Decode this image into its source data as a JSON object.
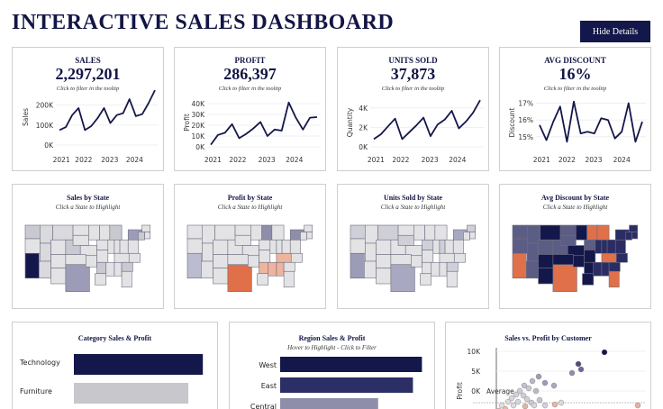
{
  "title": "INTERACTIVE SALES DASHBOARD",
  "hide_details_label": "Hide Details",
  "colors": {
    "navy": "#14174a",
    "lavender": "#8e8eaa",
    "gray": "#c7c7cc",
    "orange": "#e0704a"
  },
  "kpis": [
    {
      "label": "SALES",
      "value": "2,297,201",
      "sub": "Click to filter in the tooltip",
      "ylabel": "Sales",
      "yticks": [
        "200K",
        "100K",
        "0K"
      ],
      "xticks": [
        "2021",
        "2022",
        "2023",
        "2024"
      ]
    },
    {
      "label": "PROFIT",
      "value": "286,397",
      "sub": "Click to filter in the tooltip",
      "ylabel": "Profit",
      "yticks": [
        "40K",
        "30K",
        "20K",
        "10K",
        "0K"
      ],
      "xticks": [
        "2021",
        "2022",
        "2023",
        "2024"
      ]
    },
    {
      "label": "UNITS SOLD",
      "value": "37,873",
      "sub": "Click to filter in the tooltip",
      "ylabel": "Quantity",
      "yticks": [
        "4K",
        "2K",
        "0K"
      ],
      "xticks": [
        "2021",
        "2022",
        "2023",
        "2024"
      ]
    },
    {
      "label": "AVG DISCOUNT",
      "value": "16%",
      "sub": "Click to filter in the tooltip",
      "ylabel": "Discount",
      "yticks": [
        "17%",
        "16%",
        "15%"
      ],
      "xticks": [
        "2021",
        "2022",
        "2023",
        "2024"
      ]
    }
  ],
  "maps": [
    {
      "title": "Sales by State",
      "sub": "Click a State to Highlight"
    },
    {
      "title": "Profit by State",
      "sub": "Click a State to Highlight"
    },
    {
      "title": "Units Sold by State",
      "sub": "Click a State to Highlight"
    },
    {
      "title": "Avg Discount by State",
      "sub": "Click a State to Highlight"
    }
  ],
  "category": {
    "title": "Category Sales & Profit",
    "bars": [
      {
        "label": "Technology"
      },
      {
        "label": "Furniture"
      }
    ]
  },
  "region": {
    "title": "Region Sales & Profit",
    "sub": "Hover to Highlight  -  Click to Filter",
    "bars": [
      {
        "label": "West"
      },
      {
        "label": "East"
      },
      {
        "label": "Central"
      }
    ]
  },
  "scatter": {
    "title": "Sales vs. Profit by Customer",
    "ylabel": "Profit",
    "yticks": [
      "10K",
      "5K",
      "0K"
    ],
    "avg_label": "Average"
  },
  "chart_data": [
    {
      "type": "line",
      "title": "SALES",
      "ylabel": "Sales",
      "ylim": [
        0,
        280000
      ],
      "x": [
        "2021-Q1",
        "2021-Q2",
        "2021-Q3",
        "2021-Q4",
        "2022-Q1",
        "2022-Q2",
        "2022-Q3",
        "2022-Q4",
        "2023-Q1",
        "2023-Q2",
        "2023-Q3",
        "2023-Q4",
        "2024-Q1",
        "2024-Q2",
        "2024-Q3",
        "2024-Q4"
      ],
      "values": [
        75000,
        90000,
        150000,
        185000,
        75000,
        95000,
        135000,
        185000,
        110000,
        150000,
        160000,
        230000,
        145000,
        155000,
        210000,
        275000
      ]
    },
    {
      "type": "line",
      "title": "PROFIT",
      "ylabel": "Profit",
      "ylim": [
        0,
        45000
      ],
      "x": [
        "2021-Q1",
        "2021-Q2",
        "2021-Q3",
        "2021-Q4",
        "2022-Q1",
        "2022-Q2",
        "2022-Q3",
        "2022-Q4",
        "2023-Q1",
        "2023-Q2",
        "2023-Q3",
        "2023-Q4",
        "2024-Q1",
        "2024-Q2",
        "2024-Q3",
        "2024-Q4"
      ],
      "values": [
        2000,
        11000,
        13000,
        21000,
        8000,
        12000,
        17000,
        23000,
        10000,
        16000,
        15000,
        41000,
        27000,
        16000,
        27000,
        27500
      ]
    },
    {
      "type": "line",
      "title": "UNITS SOLD",
      "ylabel": "Quantity",
      "ylim": [
        0,
        5000
      ],
      "x": [
        "2021-Q1",
        "2021-Q2",
        "2021-Q3",
        "2021-Q4",
        "2022-Q1",
        "2022-Q2",
        "2022-Q3",
        "2022-Q4",
        "2023-Q1",
        "2023-Q2",
        "2023-Q3",
        "2023-Q4",
        "2024-Q1",
        "2024-Q2",
        "2024-Q3",
        "2024-Q4"
      ],
      "values": [
        800,
        1300,
        2100,
        2900,
        800,
        1500,
        2200,
        3000,
        1100,
        2300,
        2800,
        3700,
        1900,
        2600,
        3500,
        4800
      ]
    },
    {
      "type": "line",
      "title": "AVG DISCOUNT",
      "ylabel": "Discount",
      "ylim": [
        14.4,
        17.3
      ],
      "x": [
        "2021-Q1",
        "2021-Q2",
        "2021-Q3",
        "2021-Q4",
        "2022-Q1",
        "2022-Q2",
        "2022-Q3",
        "2022-Q4",
        "2023-Q1",
        "2023-Q2",
        "2023-Q3",
        "2023-Q4",
        "2024-Q1",
        "2024-Q2",
        "2024-Q3",
        "2024-Q4"
      ],
      "values": [
        15.7,
        14.8,
        15.9,
        16.8,
        14.7,
        17.1,
        15.2,
        15.3,
        15.2,
        16.1,
        16.0,
        14.9,
        15.3,
        17.0,
        14.7,
        15.9
      ]
    },
    {
      "type": "bar",
      "title": "Category Sales & Profit",
      "categories": [
        "Technology",
        "Furniture"
      ],
      "values": [
        836000,
        742000
      ]
    },
    {
      "type": "bar",
      "title": "Region Sales & Profit",
      "categories": [
        "West",
        "East",
        "Central"
      ],
      "values": [
        725000,
        679000,
        501000
      ]
    }
  ]
}
